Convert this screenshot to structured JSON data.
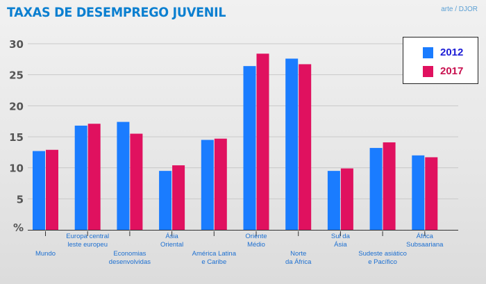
{
  "header": {
    "title": "TAXAS DE DESEMPREGO JUVENIL",
    "credit": "arte / DJOR"
  },
  "colors": {
    "series_2012": "#1a7cff",
    "series_2017": "#e0115f",
    "axis_text": "#555555",
    "category_text": "#1c6fd1"
  },
  "chart_data": {
    "type": "bar",
    "title": "TAXAS DE DESEMPREGO JUVENIL",
    "ylabel": "%",
    "ylim": [
      0,
      30
    ],
    "yticks": [
      5,
      10,
      15,
      20,
      25,
      30
    ],
    "grid": true,
    "legend": "top-right",
    "categories": [
      "Mundo",
      "Europa central leste europeu",
      "Economias desenvolvidas",
      "Ásia Oriental",
      "América Latina e Caribe",
      "Oriente Médio",
      "Norte da África",
      "Sul da Ásia",
      "Sudeste asiático e Pacífico",
      "África Subsaariana"
    ],
    "category_lines": [
      [
        "Mundo"
      ],
      [
        "Europa central",
        "leste europeu"
      ],
      [
        "Economias",
        "desenvolvidas"
      ],
      [
        "Ásia",
        "Oriental"
      ],
      [
        "América Latina",
        "e Caribe"
      ],
      [
        "Oriente",
        "Médio"
      ],
      [
        "Norte",
        "da África"
      ],
      [
        "Sul da",
        "Ásia"
      ],
      [
        "Sudeste asiático",
        "e Pacífico"
      ],
      [
        "África",
        "Subsaariana"
      ]
    ],
    "series": [
      {
        "name": "2012",
        "values": [
          12.7,
          16.8,
          17.4,
          9.5,
          14.5,
          26.4,
          27.6,
          9.5,
          13.2,
          12.0
        ]
      },
      {
        "name": "2017",
        "values": [
          12.9,
          17.1,
          15.5,
          10.4,
          14.7,
          28.4,
          26.7,
          9.9,
          14.1,
          11.7
        ]
      }
    ]
  }
}
